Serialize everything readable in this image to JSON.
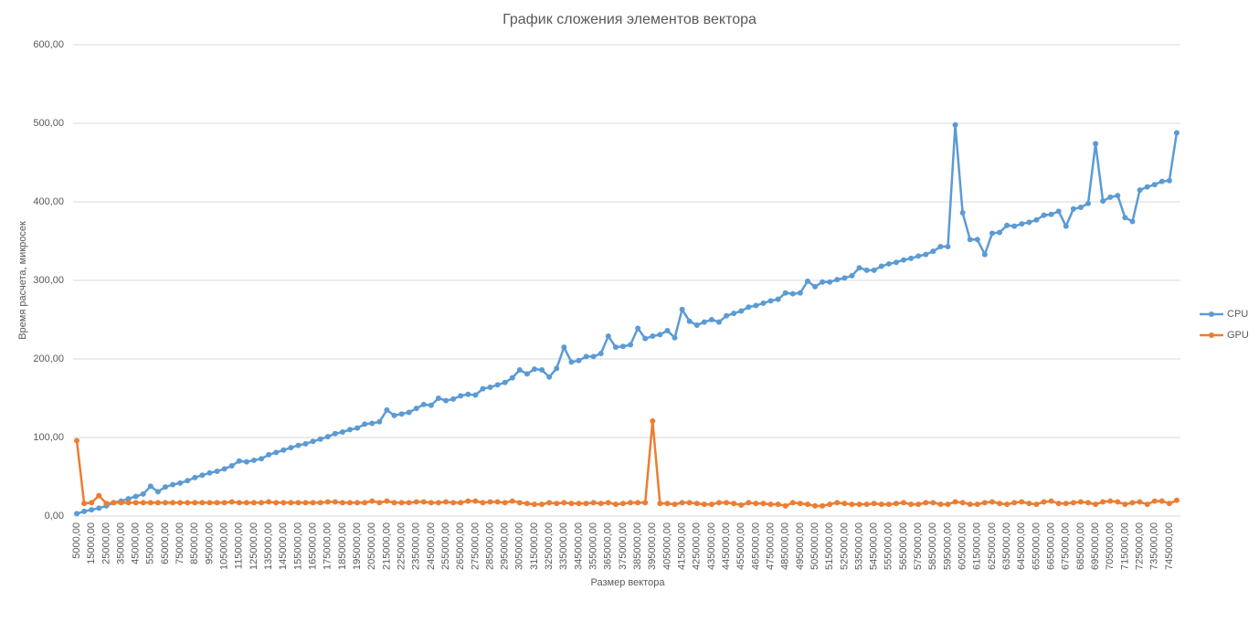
{
  "chart_data": {
    "type": "line",
    "title": "График сложения элементов вектора",
    "x_label": "Размер вектора",
    "y_label": "Время расчета, микросек",
    "categories": [
      "5000,00",
      null,
      "15000,00",
      null,
      "25000,00",
      null,
      "35000,00",
      null,
      "45000,00",
      null,
      "55000,00",
      null,
      "65000,00",
      null,
      "75000,00",
      null,
      "85000,00",
      null,
      "95000,00",
      null,
      "105000,00",
      null,
      "115000,00",
      null,
      "125000,00",
      null,
      "135000,00",
      null,
      "145000,00",
      null,
      "155000,00",
      null,
      "165000,00",
      null,
      "175000,00",
      null,
      "185000,00",
      null,
      "195000,00",
      null,
      "205000,00",
      null,
      "215000,00",
      null,
      "225000,00",
      null,
      "235000,00",
      null,
      "245000,00",
      null,
      "255000,00",
      null,
      "265000,00",
      null,
      "275000,00",
      null,
      "285000,00",
      null,
      "295000,00",
      null,
      "305000,00",
      null,
      "315000,00",
      null,
      "325000,00",
      null,
      "335000,00",
      null,
      "345000,00",
      null,
      "355000,00",
      null,
      "365000,00",
      null,
      "375000,00",
      null,
      "385000,00",
      null,
      "395000,00",
      null,
      "405000,00",
      null,
      "415000,00",
      null,
      "425000,00",
      null,
      "435000,00",
      null,
      "445000,00",
      null,
      "455000,00",
      null,
      "465000,00",
      null,
      "475000,00",
      null,
      "485000,00",
      null,
      "495000,00",
      null,
      "505000,00",
      null,
      "515000,00",
      null,
      "525000,00",
      null,
      "535000,00",
      null,
      "545000,00",
      null,
      "555000,00",
      null,
      "565000,00",
      null,
      "575000,00",
      null,
      "585000,00",
      null,
      "595000,00",
      null,
      "605000,00",
      null,
      "615000,00",
      null,
      "625000,00",
      null,
      "635000,00",
      null,
      "645000,00",
      null,
      "655000,00",
      null,
      "665000,00",
      null,
      "675000,00",
      null,
      "685000,00",
      null,
      "695000,00",
      null,
      "705000,00",
      null,
      "715000,00",
      null,
      "725000,00",
      null,
      "735000,00",
      null,
      "745000,00",
      null
    ],
    "series": [
      {
        "name": "CPU",
        "color": "#5b9bd5",
        "values": [
          3,
          6,
          8,
          10,
          13,
          17,
          19,
          22,
          25,
          28,
          38,
          31,
          37,
          40,
          42,
          45,
          49,
          52,
          55,
          57,
          60,
          64,
          70,
          69,
          71,
          73,
          78,
          81,
          84,
          87,
          90,
          92,
          95,
          98,
          101,
          105,
          107,
          110,
          112,
          117,
          118,
          120,
          135,
          128,
          130,
          132,
          137,
          142,
          141,
          150,
          147,
          149,
          153,
          155,
          154,
          162,
          164,
          167,
          170,
          176,
          186,
          181,
          187,
          186,
          177,
          188,
          215,
          196,
          198,
          203,
          203,
          207,
          229,
          215,
          216,
          218,
          239,
          226,
          229,
          231,
          236,
          227,
          263,
          248,
          243,
          247,
          250,
          247,
          255,
          258,
          261,
          266,
          268,
          271,
          274,
          276,
          284,
          283,
          284,
          299,
          292,
          298,
          298,
          301,
          303,
          306,
          316,
          313,
          313,
          318,
          321,
          323,
          326,
          328,
          331,
          333,
          337,
          343,
          343,
          498,
          386,
          352,
          352,
          333,
          360,
          361,
          370,
          369,
          372,
          374,
          377,
          383,
          384,
          388,
          369,
          391,
          393,
          398,
          474,
          401,
          406,
          408,
          380,
          375,
          415,
          419,
          422,
          426,
          427,
          488
        ]
      },
      {
        "name": "GPU",
        "color": "#ed7d31",
        "values": [
          96,
          16,
          17,
          26,
          16,
          17,
          17,
          17,
          17,
          17,
          17,
          17,
          17,
          17,
          17,
          17,
          17,
          17,
          17,
          17,
          17,
          18,
          17,
          17,
          17,
          17,
          18,
          17,
          17,
          17,
          17,
          17,
          17,
          17,
          18,
          18,
          17,
          17,
          17,
          17,
          19,
          17,
          19,
          17,
          17,
          17,
          18,
          18,
          17,
          17,
          18,
          17,
          17,
          19,
          19,
          17,
          18,
          18,
          17,
          19,
          17,
          16,
          15,
          15,
          17,
          16,
          17,
          16,
          16,
          16,
          17,
          16,
          17,
          15,
          16,
          17,
          17,
          17,
          121,
          16,
          16,
          15,
          17,
          17,
          16,
          15,
          15,
          17,
          17,
          16,
          14,
          17,
          16,
          16,
          15,
          15,
          13,
          17,
          16,
          15,
          13,
          13,
          15,
          17,
          16,
          15,
          15,
          15,
          16,
          15,
          15,
          16,
          17,
          15,
          15,
          17,
          17,
          15,
          15,
          18,
          17,
          15,
          15,
          17,
          18,
          16,
          15,
          17,
          18,
          16,
          15,
          18,
          19,
          16,
          16,
          17,
          18,
          17,
          15,
          18,
          19,
          18,
          15,
          17,
          18,
          15,
          19,
          19,
          16,
          20
        ]
      }
    ],
    "ylim": [
      0,
      600
    ],
    "yticks": [
      {
        "value": 0,
        "label": "0,00"
      },
      {
        "value": 100,
        "label": "100,00"
      },
      {
        "value": 200,
        "label": "200,00"
      },
      {
        "value": 300,
        "label": "300,00"
      },
      {
        "value": 400,
        "label": "400,00"
      },
      {
        "value": 500,
        "label": "500,00"
      },
      {
        "value": 600,
        "label": "600,00"
      }
    ],
    "grid": true,
    "legend": "right"
  }
}
